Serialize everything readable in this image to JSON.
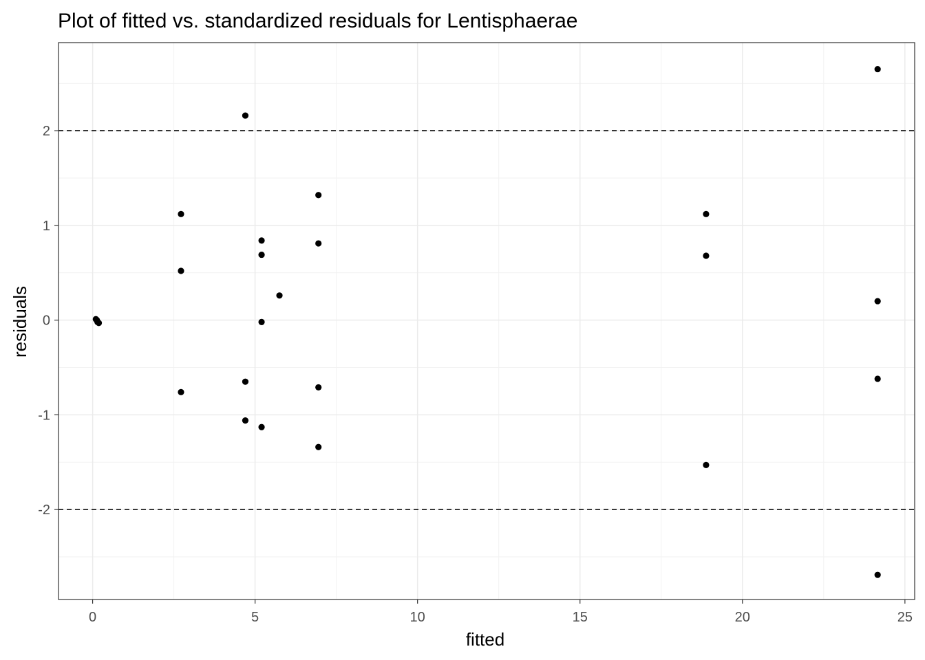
{
  "chart_data": {
    "type": "scatter",
    "title": "Plot of fitted vs. standardized residuals for Lentisphaerae",
    "xlabel": "fitted",
    "ylabel": "residuals",
    "xlim": [
      -1.05,
      25.3
    ],
    "ylim": [
      -2.95,
      2.93
    ],
    "x_ticks": [
      0,
      5,
      10,
      15,
      20,
      25
    ],
    "x_tick_labels": [
      "0",
      "5",
      "10",
      "15",
      "20",
      "25"
    ],
    "y_ticks": [
      -2,
      -1,
      0,
      1,
      2
    ],
    "y_tick_labels": [
      "-2",
      "-1",
      "0",
      "1",
      "2"
    ],
    "grid": true,
    "reference_lines": [
      2,
      -2
    ],
    "reference_line_style": "dashed",
    "point_color": "#000000",
    "points": [
      {
        "x": 0.1,
        "y": 0.01
      },
      {
        "x": 0.13,
        "y": 0.0
      },
      {
        "x": 0.15,
        "y": -0.02
      },
      {
        "x": 0.19,
        "y": -0.03
      },
      {
        "x": 2.72,
        "y": 1.12
      },
      {
        "x": 2.72,
        "y": 0.52
      },
      {
        "x": 2.72,
        "y": -0.76
      },
      {
        "x": 4.7,
        "y": 2.16
      },
      {
        "x": 4.7,
        "y": -0.65
      },
      {
        "x": 4.7,
        "y": -1.06
      },
      {
        "x": 5.2,
        "y": 0.84
      },
      {
        "x": 5.2,
        "y": 0.69
      },
      {
        "x": 5.2,
        "y": -0.02
      },
      {
        "x": 5.2,
        "y": -1.13
      },
      {
        "x": 5.75,
        "y": 0.26
      },
      {
        "x": 6.95,
        "y": 1.32
      },
      {
        "x": 6.95,
        "y": 0.81
      },
      {
        "x": 6.95,
        "y": -0.71
      },
      {
        "x": 6.95,
        "y": -1.34
      },
      {
        "x": 18.88,
        "y": 1.12
      },
      {
        "x": 18.88,
        "y": 0.68
      },
      {
        "x": 18.88,
        "y": -1.53
      },
      {
        "x": 24.16,
        "y": 2.65
      },
      {
        "x": 24.16,
        "y": 0.2
      },
      {
        "x": 24.16,
        "y": -0.62
      },
      {
        "x": 24.16,
        "y": -2.69
      }
    ]
  }
}
